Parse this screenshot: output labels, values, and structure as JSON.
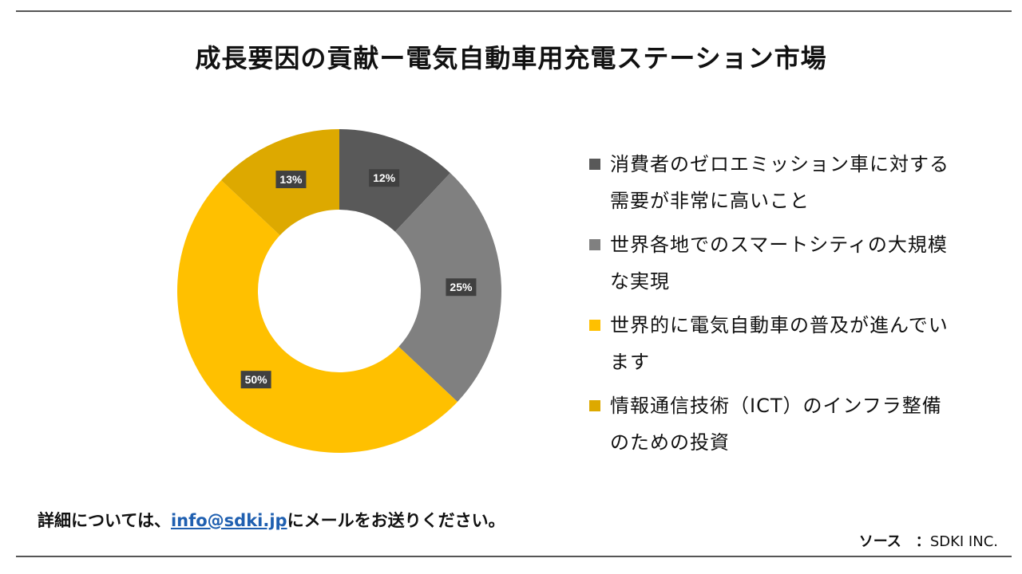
{
  "chart_data": {
    "type": "donut",
    "title": "成長要因の貢献ー電気自動車用充電ステーション市場",
    "series": [
      {
        "name": "消費者のゼロエミッション車に対する需要が非常に高いこと",
        "value": 12,
        "label": "12%",
        "color": "#595959"
      },
      {
        "name": "世界各地でのスマートシティの大規模な実現",
        "value": 25,
        "label": "25%",
        "color": "#808080"
      },
      {
        "name": "世界的に電気自動車の普及が進んでいます",
        "value": 50,
        "label": "50%",
        "color": "#ffc000"
      },
      {
        "name": " 情報通信技術（ICT）のインフラ整備のための投資",
        "value": 13,
        "label": "13%",
        "color": "#dda900"
      }
    ]
  },
  "footer": {
    "prefix": "詳細については、",
    "email": "info@sdki.jp",
    "suffix": "にメールをお送りください。"
  },
  "source": {
    "label": "ソース　：",
    "value": "SDKI INC."
  }
}
